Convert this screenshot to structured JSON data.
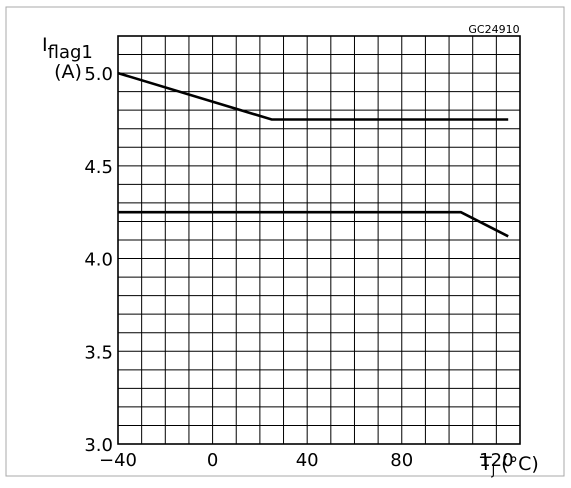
{
  "chart_data": {
    "type": "line",
    "figure_code": "GC24910",
    "ylabel_main": "I",
    "ylabel_sub": "flag1",
    "ylabel_unit": "(A)",
    "xlabel_main": "T",
    "xlabel_sub": "J",
    "xlabel_unit": "(°C)",
    "xlim": [
      -40,
      130
    ],
    "ylim": [
      3.0,
      5.2
    ],
    "grid": true,
    "x_ticks": [
      {
        "value": -40,
        "label": "−40"
      },
      {
        "value": 0,
        "label": "0"
      },
      {
        "value": 40,
        "label": "40"
      },
      {
        "value": 80,
        "label": "80"
      },
      {
        "value": 120,
        "label": "120"
      }
    ],
    "y_ticks": [
      {
        "value": 3.0,
        "label": "3.0"
      },
      {
        "value": 3.5,
        "label": "3.5"
      },
      {
        "value": 4.0,
        "label": "4.0"
      },
      {
        "value": 4.5,
        "label": "4.5"
      },
      {
        "value": 5.0,
        "label": "5.0"
      }
    ],
    "series": [
      {
        "x": [
          -40,
          25,
          125
        ],
        "y": [
          5.0,
          4.75,
          4.75
        ]
      },
      {
        "x": [
          -40,
          105,
          125
        ],
        "y": [
          4.25,
          4.25,
          4.12
        ]
      }
    ],
    "colors": {
      "line": "#000000",
      "grid": "#000000",
      "frame": "#a8a8a8"
    }
  }
}
